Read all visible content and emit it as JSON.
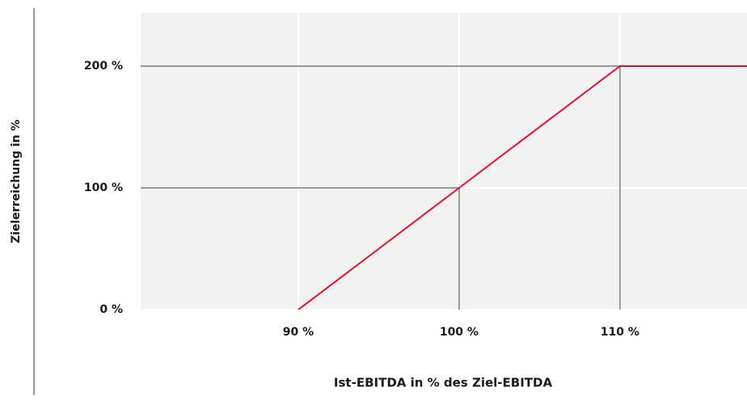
{
  "chart_data": {
    "type": "line",
    "x_label": "Ist-EBITDA in % des Ziel-EBITDA",
    "y_label": "Zielerreichung in %",
    "x": [
      90,
      100,
      110,
      117.9
    ],
    "values": [
      0,
      100,
      200,
      200
    ],
    "color": "#e8112d",
    "xlim": [
      80.2,
      117.9
    ],
    "ylim": [
      0,
      243.7
    ],
    "xticks": [
      {
        "value": 90,
        "label": "90 %"
      },
      {
        "value": 100,
        "label": "100 %"
      },
      {
        "value": 110,
        "label": "110 %"
      }
    ],
    "yticks": [
      {
        "value": 0,
        "label": "0 %"
      },
      {
        "value": 100,
        "label": "100 %"
      },
      {
        "value": 200,
        "label": "200 %"
      }
    ],
    "grid": true
  }
}
